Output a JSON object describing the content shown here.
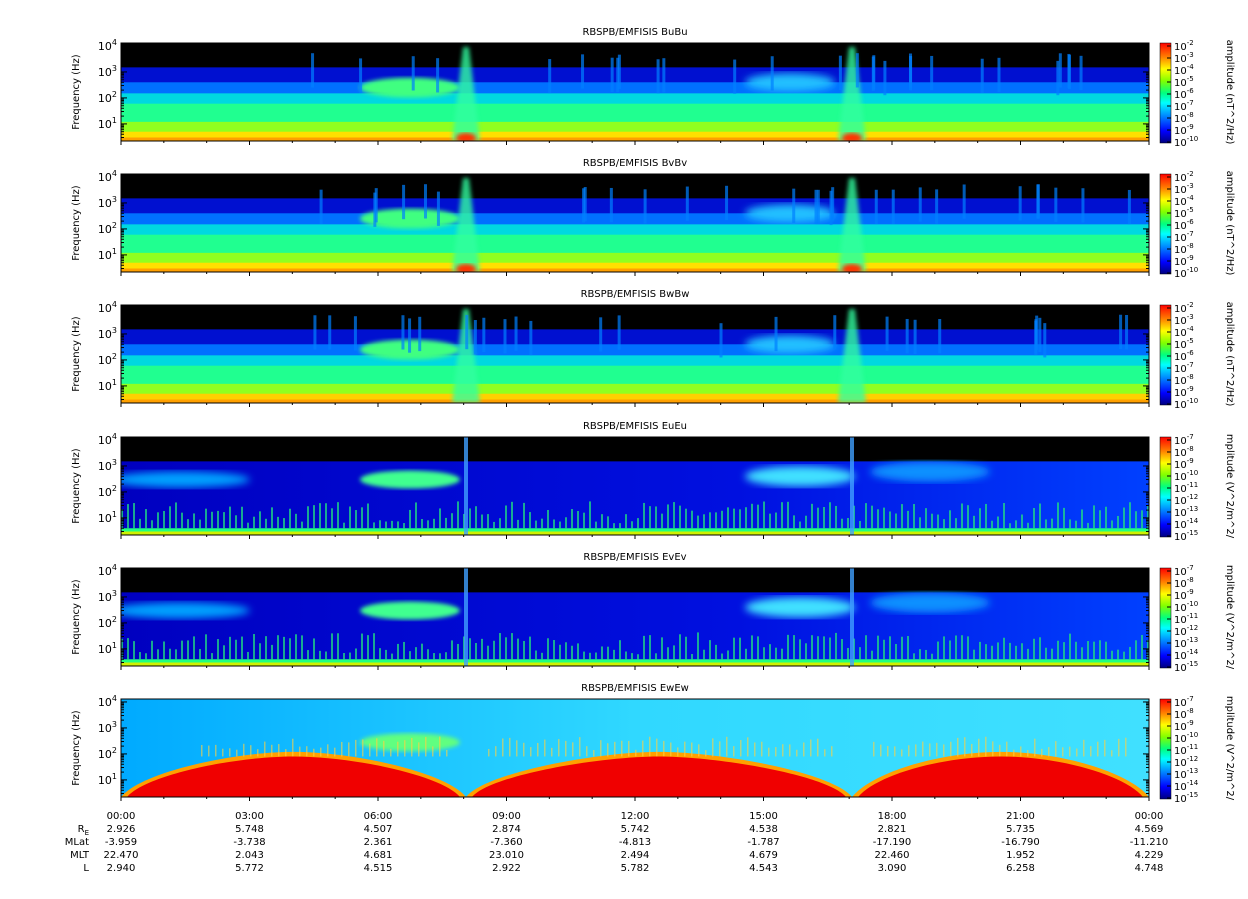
{
  "chart_data": {
    "type": "heatmap",
    "panels": [
      {
        "title": "RBSPB/EMFISIS  BuBu",
        "ylabel": "Frequency (Hz)",
        "cbar_label": "amplitude (nT^2/Hz)",
        "cbar_ticks": [
          -2,
          -3,
          -4,
          -5,
          -6,
          -7,
          -8,
          -9,
          -10
        ],
        "kind": "B"
      },
      {
        "title": "RBSPB/EMFISIS  BvBv",
        "ylabel": "Frequency (Hz)",
        "cbar_label": "amplitude (nT^2/Hz)",
        "cbar_ticks": [
          -2,
          -3,
          -4,
          -5,
          -6,
          -7,
          -8,
          -9,
          -10
        ],
        "kind": "B"
      },
      {
        "title": "RBSPB/EMFISIS  BwBw",
        "ylabel": "Frequency (Hz)",
        "cbar_label": "amplitude (nT^2/Hz)",
        "cbar_ticks": [
          -2,
          -3,
          -4,
          -5,
          -6,
          -7,
          -8,
          -9,
          -10
        ],
        "kind": "Bw"
      },
      {
        "title": "RBSPB/EMFISIS  EuEu",
        "ylabel": "Frequency (Hz)",
        "cbar_label": "mplitude (V^2/m^2/",
        "cbar_ticks": [
          -7,
          -8,
          -9,
          -10,
          -11,
          -12,
          -13,
          -14,
          -15
        ],
        "kind": "E"
      },
      {
        "title": "RBSPB/EMFISIS  EvEv",
        "ylabel": "Frequency (Hz)",
        "cbar_label": "mplitude (V^2/m^2/",
        "cbar_ticks": [
          -7,
          -8,
          -9,
          -10,
          -11,
          -12,
          -13,
          -14,
          -15
        ],
        "kind": "E"
      },
      {
        "title": "RBSPB/EMFISIS  EwEw",
        "ylabel": "Frequency (Hz)",
        "cbar_label": "mplitude (V^2/m^2/",
        "cbar_ticks": [
          -7,
          -8,
          -9,
          -10,
          -11,
          -12,
          -13,
          -14,
          -15
        ],
        "kind": "Ew"
      }
    ],
    "y_scale": "log",
    "y_ticks": [
      10,
      100,
      1000,
      10000
    ],
    "y_tick_labels": [
      "10^1",
      "10^2",
      "10^3",
      "10^4"
    ],
    "x_tick_labels": [
      "00:00",
      "03:00",
      "06:00",
      "09:00",
      "12:00",
      "15:00",
      "18:00",
      "21:00",
      "00:00"
    ],
    "ephemeris": {
      "labels": [
        "R_E",
        "MLat",
        "MLT",
        "L"
      ],
      "rows": [
        [
          "2.926",
          "5.748",
          "4.507",
          "2.874",
          "5.742",
          "4.538",
          "2.821",
          "5.735",
          "4.569"
        ],
        [
          "-3.959",
          "-3.738",
          "2.361",
          "-7.360",
          "-4.813",
          "-1.787",
          "-17.190",
          "-16.790",
          "-11.210"
        ],
        [
          "22.470",
          "2.043",
          "4.681",
          "23.010",
          "2.494",
          "4.679",
          "22.460",
          "1.952",
          "4.229"
        ],
        [
          "2.940",
          "5.772",
          "4.515",
          "2.922",
          "5.782",
          "4.543",
          "3.090",
          "6.258",
          "4.748"
        ]
      ]
    },
    "colorscale": [
      "#000080",
      "#0000ff",
      "#0080ff",
      "#00ffff",
      "#00ff80",
      "#80ff00",
      "#ffff00",
      "#ff8000",
      "#ff0000"
    ]
  }
}
